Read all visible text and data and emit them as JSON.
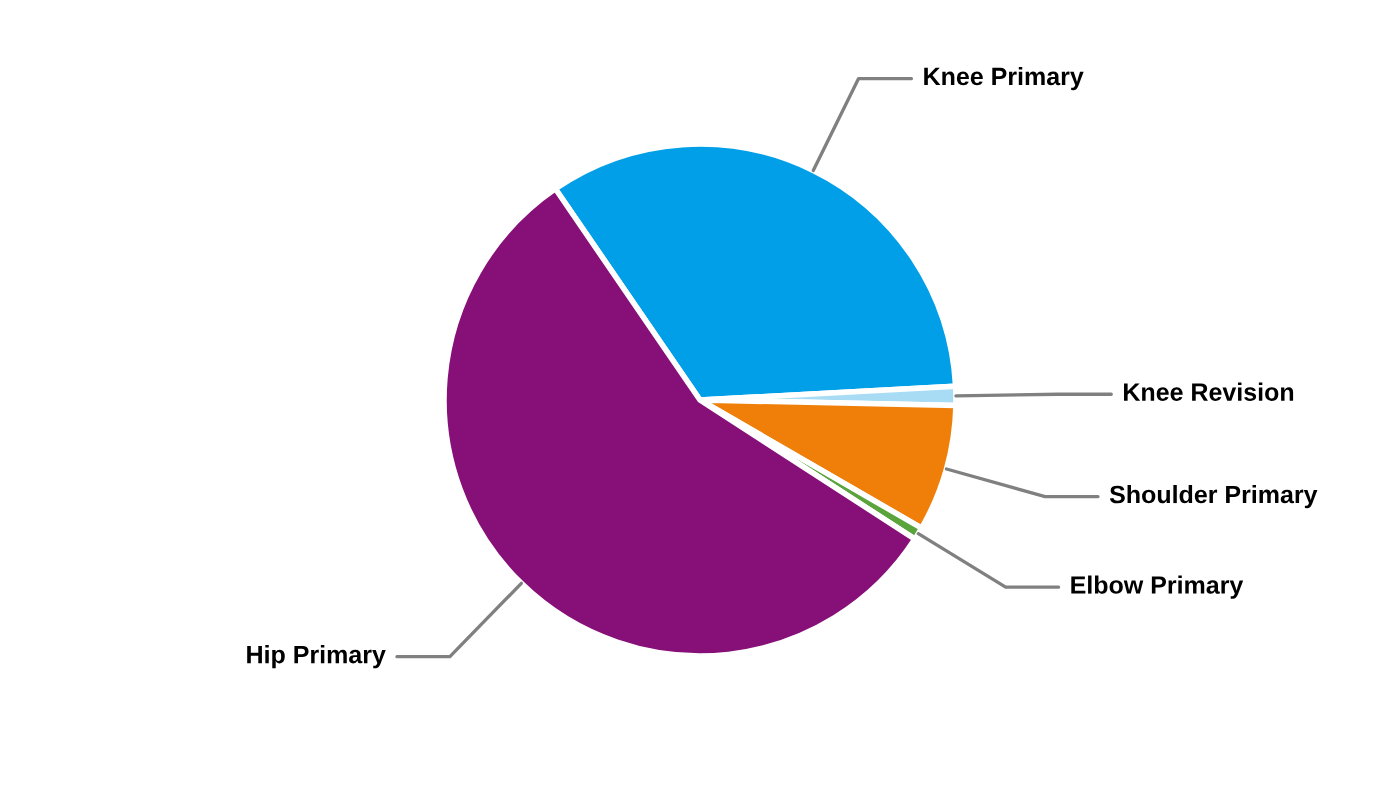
{
  "chart_data": {
    "type": "pie",
    "categories": [
      "Knee Primary",
      "Knee Revision",
      "Shoulder Primary",
      "Elbow Primary",
      "Hip Primary"
    ],
    "values": [
      33.7,
      1.2,
      8,
      0.8,
      56.3
    ],
    "colors": [
      "#009fe8",
      "#a8dcf5",
      "#f07f09",
      "#5ba33b",
      "#870f78"
    ],
    "legend": false
  }
}
